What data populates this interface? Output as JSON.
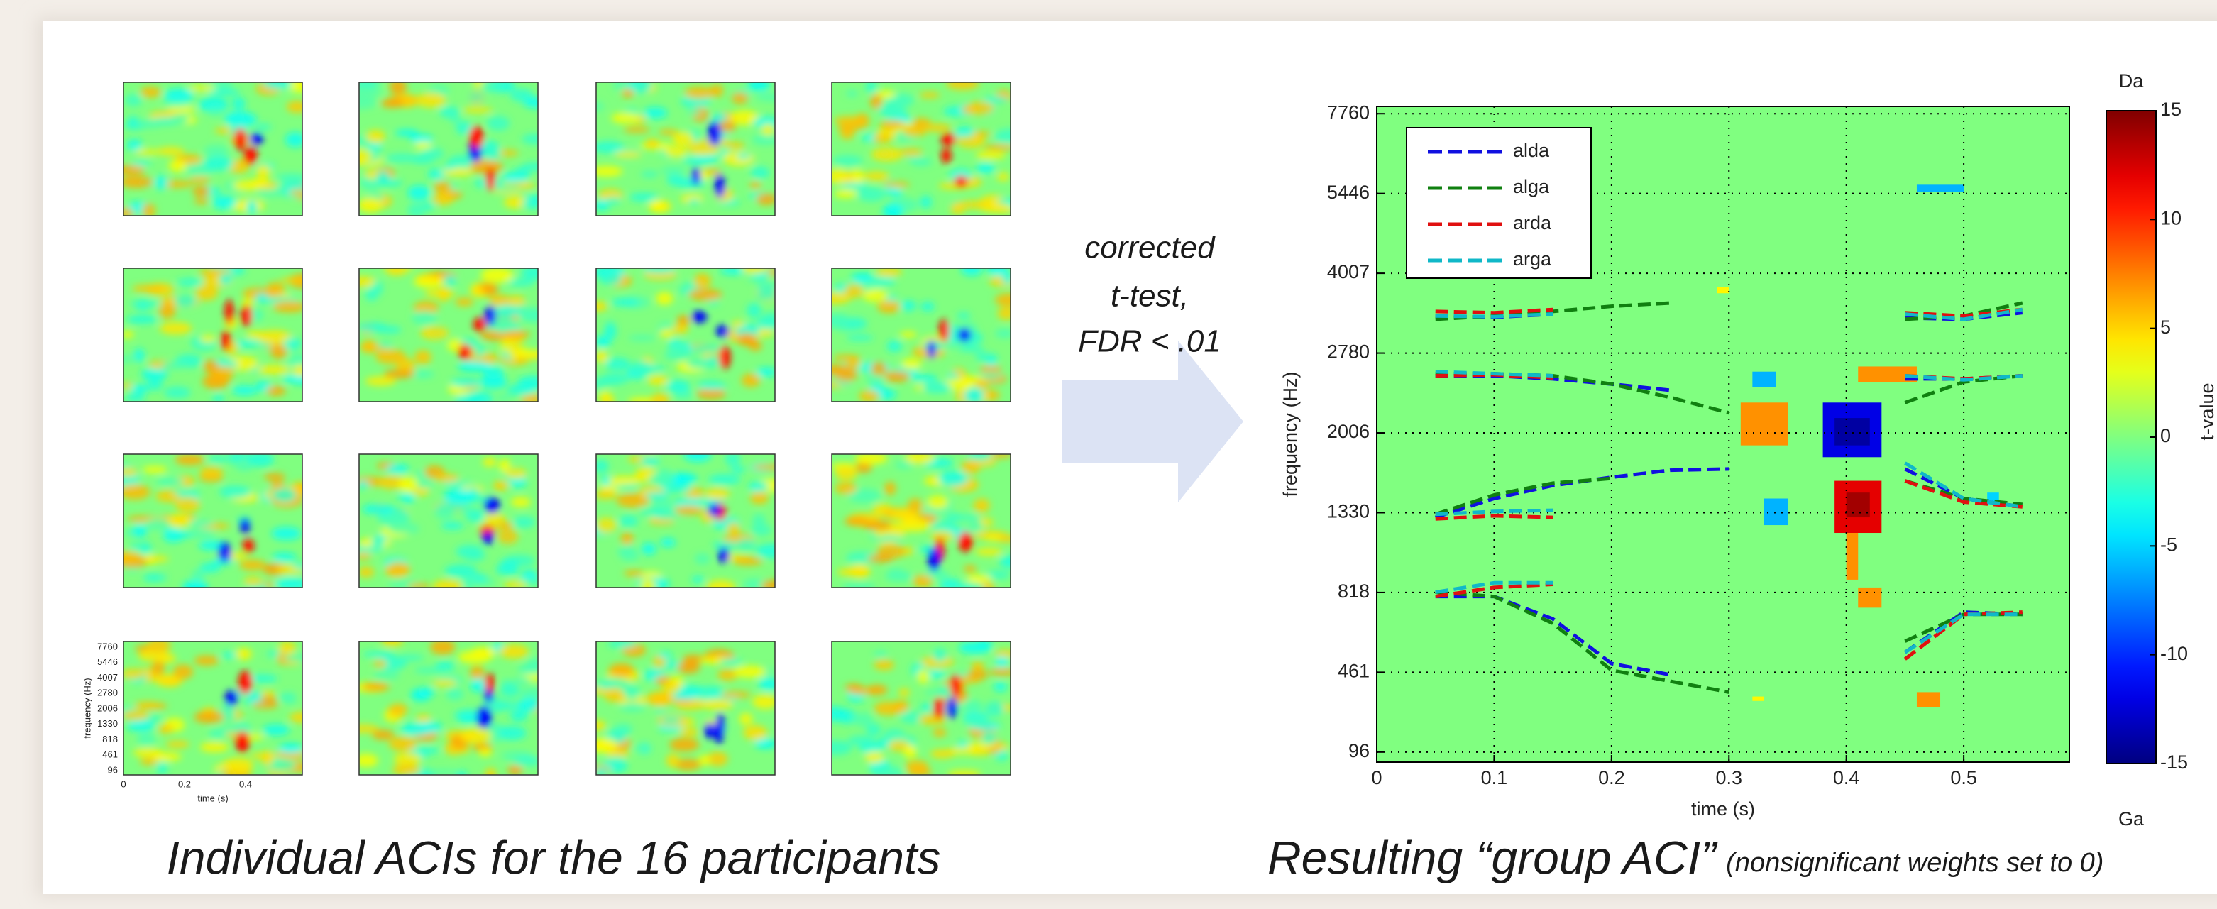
{
  "participants": {
    "caption": "Individual ACIs for the 16 participants",
    "ylabel": "frequency (Hz)",
    "xlabel": "time (s)",
    "yticks": [
      96,
      461,
      818,
      1330,
      2006,
      2780,
      4007,
      5446,
      7760
    ],
    "xticks": [
      0,
      0.2,
      0.4
    ]
  },
  "arrow_label": [
    "corrected",
    "t-test,",
    "FDR < .01"
  ],
  "chart_data": {
    "type": "line",
    "title": "Resulting “group ACI”",
    "subtitle": "(nonsignificant weights set to 0)",
    "xlabel": "time (s)",
    "ylabel": "frequency (Hz)",
    "x": [
      0.05,
      0.1,
      0.15,
      0.2,
      0.25,
      0.3,
      0.35,
      0.4,
      0.45,
      0.5,
      0.55
    ],
    "xlim": [
      0,
      0.59
    ],
    "xticks": [
      0,
      0.1,
      0.2,
      0.3,
      0.4,
      0.5
    ],
    "ylim": [
      50,
      7970
    ],
    "yticks": [
      96,
      461,
      818,
      1330,
      2006,
      2780,
      4007,
      5446,
      7760
    ],
    "grid": true,
    "legend": "upper left",
    "series": [
      {
        "name": "alda",
        "color": "#1010e0",
        "tracks": [
          [
            3350,
            3330,
            3380,
            null,
            null,
            null,
            null,
            null,
            3320,
            3300,
            3400
          ],
          [
            2560,
            2560,
            2530,
            2480,
            2420,
            null,
            null,
            null,
            2530,
            2530,
            2560
          ],
          [
            1300,
            1450,
            1560,
            1630,
            1690,
            1700,
            null,
            null,
            1700,
            1450,
            1380
          ],
          [
            800,
            800,
            700,
            500,
            450,
            null,
            null,
            null,
            550,
            730,
            720
          ]
        ]
      },
      {
        "name": "alga",
        "color": "#108010",
        "tracks": [
          [
            3300,
            3350,
            3420,
            3500,
            3550,
            null,
            null,
            null,
            3300,
            3350,
            3550
          ],
          [
            2580,
            2580,
            2560,
            2480,
            2350,
            2200,
            null,
            null,
            2300,
            2500,
            2560
          ],
          [
            1320,
            1480,
            1580,
            1620,
            null,
            null,
            null,
            null,
            1600,
            1450,
            1400
          ],
          [
            820,
            800,
            680,
            470,
            420,
            370,
            null,
            null,
            600,
            720,
            720
          ]
        ]
      },
      {
        "name": "arda",
        "color": "#e01010",
        "tracks": [
          [
            3420,
            3400,
            3450,
            null,
            null,
            null,
            null,
            null,
            3400,
            3350,
            3450
          ],
          [
            2560,
            2570,
            2540,
            null,
            null,
            null,
            null,
            null,
            2560,
            2530,
            2560
          ],
          [
            1290,
            1310,
            1300,
            null,
            null,
            null,
            null,
            null,
            1600,
            1420,
            1380
          ],
          [
            800,
            850,
            870,
            null,
            null,
            null,
            null,
            null,
            520,
            720,
            730
          ]
        ]
      },
      {
        "name": "arga",
        "color": "#10b8c8",
        "tracks": [
          [
            3350,
            3340,
            3380,
            null,
            null,
            null,
            null,
            null,
            3380,
            3300,
            3450
          ],
          [
            2600,
            2580,
            2560,
            null,
            null,
            null,
            null,
            null,
            2560,
            2520,
            2560
          ],
          [
            1320,
            1340,
            1350,
            null,
            null,
            null,
            null,
            null,
            1750,
            1450,
            1380
          ],
          [
            820,
            880,
            880,
            null,
            null,
            null,
            null,
            null,
            550,
            720,
            720
          ]
        ]
      }
    ],
    "heatmap": {
      "label": "t-value",
      "top_label": "Da",
      "bottom_label": "Ga",
      "clim": [
        -15,
        15
      ],
      "ticks": [
        -15,
        -10,
        -5,
        0,
        5,
        10,
        15
      ],
      "cells": [
        {
          "x": [
            0.31,
            0.35
          ],
          "y": [
            1900,
            2300
          ],
          "value": 7
        },
        {
          "x": [
            0.38,
            0.43
          ],
          "y": [
            1800,
            2300
          ],
          "value": -12
        },
        {
          "x": [
            0.39,
            0.42
          ],
          "y": [
            1900,
            2150
          ],
          "value": -14
        },
        {
          "x": [
            0.46,
            0.5
          ],
          "y": [
            5500,
            5700
          ],
          "value": -6
        },
        {
          "x": [
            0.39,
            0.43
          ],
          "y": [
            1200,
            1600
          ],
          "value": 12
        },
        {
          "x": [
            0.4,
            0.42
          ],
          "y": [
            1300,
            1500
          ],
          "value": 14
        },
        {
          "x": [
            0.4,
            0.41
          ],
          "y": [
            900,
            1200
          ],
          "value": 7
        },
        {
          "x": [
            0.33,
            0.35
          ],
          "y": [
            1250,
            1450
          ],
          "value": -6
        },
        {
          "x": [
            0.32,
            0.34
          ],
          "y": [
            2450,
            2600
          ],
          "value": -6
        },
        {
          "x": [
            0.41,
            0.46
          ],
          "y": [
            2500,
            2650
          ],
          "value": 7
        },
        {
          "x": [
            0.41,
            0.43
          ],
          "y": [
            750,
            850
          ],
          "value": 7
        },
        {
          "x": [
            0.46,
            0.48
          ],
          "y": [
            300,
            370
          ],
          "value": 7
        },
        {
          "x": [
            0.32,
            0.33
          ],
          "y": [
            330,
            350
          ],
          "value": 4
        },
        {
          "x": [
            0.29,
            0.3
          ],
          "y": [
            3700,
            3800
          ],
          "value": 4
        },
        {
          "x": [
            0.52,
            0.53
          ],
          "y": [
            1400,
            1500
          ],
          "value": -5
        }
      ]
    }
  }
}
